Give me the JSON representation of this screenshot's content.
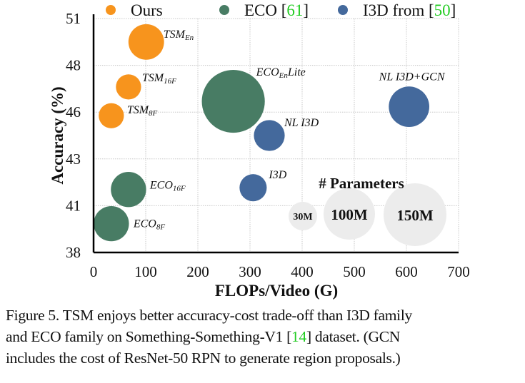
{
  "chart_data": {
    "type": "scatter",
    "subtype": "bubble",
    "title": "",
    "xlabel": "FLOPs/Video (G)",
    "ylabel": "Accuracy (%)",
    "xlim": [
      0,
      700
    ],
    "ylim": [
      38,
      51
    ],
    "x_ticks": [
      0,
      100,
      200,
      300,
      400,
      500,
      600,
      700
    ],
    "y_ticks": [
      38,
      41,
      43,
      46,
      48,
      51
    ],
    "y_tick_labels": [
      "38",
      "41",
      "43",
      "46",
      "48",
      "51"
    ],
    "grid": true,
    "legend": {
      "position": "top",
      "entries": [
        {
          "label": "Ours",
          "ref": "",
          "color": "#f7941d"
        },
        {
          "label": "ECO ",
          "ref": "61",
          "color": "#487c64"
        },
        {
          "label": "I3D from ",
          "ref": "50",
          "color": "#44699c"
        }
      ]
    },
    "size_legend": {
      "title": "# Parameters",
      "entries": [
        {
          "label": "30M",
          "params_m": 30
        },
        {
          "label": "100M",
          "params_m": 100
        },
        {
          "label": "150M",
          "params_m": 150
        }
      ]
    },
    "series": [
      {
        "name": "Ours",
        "color": "#f7941d",
        "points": [
          {
            "label": "TSM",
            "sub": "En",
            "x": 101,
            "y": 49.7,
            "params_m": 48
          },
          {
            "label": "TSM",
            "sub": "16F",
            "x": 67,
            "y": 47.2,
            "params_m": 24
          },
          {
            "label": "TSM",
            "sub": "8F",
            "x": 34,
            "y": 45.6,
            "params_m": 24
          }
        ]
      },
      {
        "name": "ECO",
        "color": "#487c64",
        "points": [
          {
            "label": "ECO",
            "sub": "En",
            "suffix": "Lite",
            "x": 268,
            "y": 46.4,
            "params_m": 150
          },
          {
            "label": "ECO",
            "sub": "16F",
            "x": 67,
            "y": 41.5,
            "params_m": 47
          },
          {
            "label": "ECO",
            "sub": "8F",
            "x": 34,
            "y": 39.6,
            "params_m": 47
          }
        ]
      },
      {
        "name": "I3D",
        "color": "#44699c",
        "points": [
          {
            "label": "NL I3D+GCN",
            "sub": "",
            "x": 605,
            "y": 46.1,
            "params_m": 62
          },
          {
            "label": "NL I3D",
            "sub": "",
            "x": 337,
            "y": 44.5,
            "params_m": 36
          },
          {
            "label": "I3D",
            "sub": "",
            "x": 306,
            "y": 41.6,
            "params_m": 28
          }
        ]
      }
    ]
  },
  "caption": {
    "line1": "Figure 5. TSM enjoys better accuracy-cost trade-off than I3D family",
    "line2_pre": "and ECO family on Something-Something-V1 [",
    "line2_ref": "14",
    "line2_post": "] dataset. (GCN",
    "line3": "includes the cost of ResNet-50 RPN to generate region proposals.)"
  }
}
